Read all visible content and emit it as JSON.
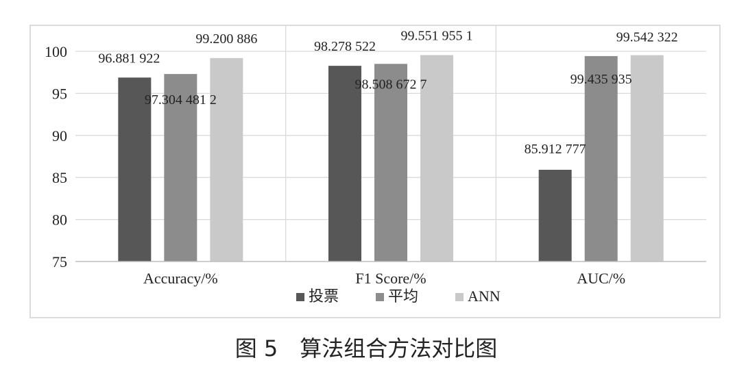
{
  "chart_data": {
    "type": "bar",
    "categories": [
      "Accuracy/%",
      "F1 Score/%",
      "AUC/%"
    ],
    "series": [
      {
        "name": "投票",
        "values": [
          96.881922,
          98.278522,
          85.912777
        ]
      },
      {
        "name": "平均",
        "values": [
          97.3044812,
          98.5086727,
          99.435935
        ]
      },
      {
        "name": "ANN",
        "values": [
          99.200886,
          99.5519551,
          99.542322
        ]
      }
    ],
    "data_labels": [
      [
        "96.881 922",
        "98.278 522",
        "85.912 777"
      ],
      [
        "97.304 481 2",
        "98.508 672 7",
        "99.435 935"
      ],
      [
        "99.200 886",
        "99.551 955 1",
        "99.542 322"
      ]
    ],
    "ylim": [
      75,
      100
    ],
    "yticks": [
      75,
      80,
      85,
      90,
      95,
      100
    ],
    "grid": true,
    "legend_position": "bottom",
    "colors": [
      "#575757",
      "#8c8c8c",
      "#c9c9c9"
    ]
  },
  "caption": "图 5　算法组合方法对比图"
}
